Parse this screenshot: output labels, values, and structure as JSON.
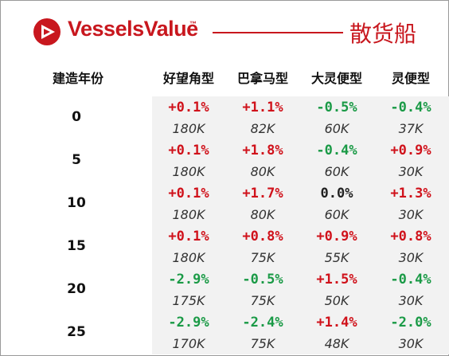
{
  "header": {
    "brand": "VesselsValue",
    "tm": "™",
    "category": "散货船"
  },
  "columns": {
    "age": "建造年份",
    "types": [
      "好望角型",
      "巴拿马型",
      "大灵便型",
      "灵便型"
    ]
  },
  "rows": [
    {
      "age": "0",
      "cells": [
        {
          "pct": "+0.1%",
          "val": "180K"
        },
        {
          "pct": "+1.1%",
          "val": "82K"
        },
        {
          "pct": "-0.5%",
          "val": "60K"
        },
        {
          "pct": "-0.4%",
          "val": "37K"
        }
      ]
    },
    {
      "age": "5",
      "cells": [
        {
          "pct": "+0.1%",
          "val": "180K"
        },
        {
          "pct": "+1.8%",
          "val": "80K"
        },
        {
          "pct": "-0.4%",
          "val": "60K"
        },
        {
          "pct": "+0.9%",
          "val": "30K"
        }
      ]
    },
    {
      "age": "10",
      "cells": [
        {
          "pct": "+0.1%",
          "val": "180K"
        },
        {
          "pct": "+1.7%",
          "val": "80K"
        },
        {
          "pct": "0.0%",
          "val": "60K"
        },
        {
          "pct": "+1.3%",
          "val": "30K"
        }
      ]
    },
    {
      "age": "15",
      "cells": [
        {
          "pct": "+0.1%",
          "val": "180K"
        },
        {
          "pct": "+0.8%",
          "val": "75K"
        },
        {
          "pct": "+0.9%",
          "val": "55K"
        },
        {
          "pct": "+0.8%",
          "val": "30K"
        }
      ]
    },
    {
      "age": "20",
      "cells": [
        {
          "pct": "-2.9%",
          "val": "175K"
        },
        {
          "pct": "-0.5%",
          "val": "75K"
        },
        {
          "pct": "+1.5%",
          "val": "50K"
        },
        {
          "pct": "-0.4%",
          "val": "30K"
        }
      ]
    },
    {
      "age": "25",
      "cells": [
        {
          "pct": "-2.9%",
          "val": "170K"
        },
        {
          "pct": "-2.4%",
          "val": "75K"
        },
        {
          "pct": "+1.4%",
          "val": "48K"
        },
        {
          "pct": "-2.0%",
          "val": "30K"
        }
      ]
    }
  ],
  "colors": {
    "brand": "#c8171e",
    "positive": "#d0121b",
    "negative": "#1a9a46"
  }
}
